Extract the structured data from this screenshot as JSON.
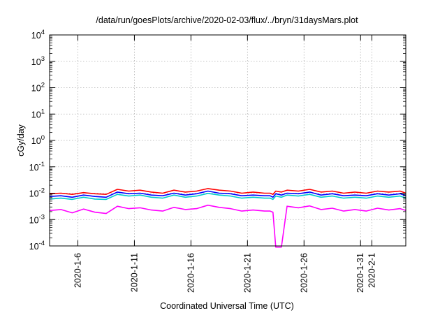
{
  "chart_data": {
    "type": "line",
    "title": "/data/run/goesPlots/archive/2020-02-03/flux/../bryn/31daysMars.plot",
    "xlabel": "Coordinated Universal Time (UTC)",
    "ylabel": "cGy/day",
    "yscale": "log",
    "ylim": [
      0.0001,
      10000
    ],
    "xlim": [
      "2020-01-03T12:00",
      "2020-02-04T00:00"
    ],
    "grid": true,
    "legend": "none",
    "y_ticks": [
      {
        "base": "10",
        "exp": "-4",
        "value": 0.0001
      },
      {
        "base": "10",
        "exp": "-3",
        "value": 0.001
      },
      {
        "base": "10",
        "exp": "-2",
        "value": 0.01
      },
      {
        "base": "10",
        "exp": "-1",
        "value": 0.1
      },
      {
        "base": "10",
        "exp": "0",
        "value": 1
      },
      {
        "base": "10",
        "exp": "1",
        "value": 10
      },
      {
        "base": "10",
        "exp": "2",
        "value": 100
      },
      {
        "base": "10",
        "exp": "3",
        "value": 1000
      },
      {
        "base": "10",
        "exp": "4",
        "value": 10000
      }
    ],
    "x_ticks": [
      {
        "label": "2020-1-6",
        "date": "2020-01-06"
      },
      {
        "label": "2020-1-11",
        "date": "2020-01-11"
      },
      {
        "label": "2020-1-16",
        "date": "2020-01-16"
      },
      {
        "label": "2020-1-21",
        "date": "2020-01-21"
      },
      {
        "label": "2020-1-26",
        "date": "2020-01-26"
      },
      {
        "label": "2020-1-31",
        "date": "2020-01-31"
      },
      {
        "label": "2020-2-1",
        "date": "2020-02-01"
      }
    ],
    "x": [
      "2020-01-03T12:00",
      "2020-01-04T12:00",
      "2020-01-05T12:00",
      "2020-01-06T12:00",
      "2020-01-07T12:00",
      "2020-01-08T12:00",
      "2020-01-09T12:00",
      "2020-01-10T12:00",
      "2020-01-11T12:00",
      "2020-01-12T12:00",
      "2020-01-13T12:00",
      "2020-01-14T12:00",
      "2020-01-15T12:00",
      "2020-01-16T12:00",
      "2020-01-17T12:00",
      "2020-01-18T12:00",
      "2020-01-19T12:00",
      "2020-01-20T12:00",
      "2020-01-21T12:00",
      "2020-01-22T12:00",
      "2020-01-23T00:00",
      "2020-01-23T06:00",
      "2020-01-23T12:00",
      "2020-01-24T00:00",
      "2020-01-24T12:00",
      "2020-01-25T12:00",
      "2020-01-26T12:00",
      "2020-01-27T12:00",
      "2020-01-28T12:00",
      "2020-01-29T12:00",
      "2020-01-30T12:00",
      "2020-01-31T12:00",
      "2020-02-01T12:00",
      "2020-02-02T12:00",
      "2020-02-03T12:00",
      "2020-02-04T00:00"
    ],
    "series": [
      {
        "color": "#ff0000",
        "values": [
          0.0095,
          0.01,
          0.009,
          0.0105,
          0.0095,
          0.009,
          0.014,
          0.012,
          0.013,
          0.011,
          0.01,
          0.013,
          0.011,
          0.012,
          0.015,
          0.013,
          0.012,
          0.01,
          0.011,
          0.01,
          0.01,
          0.009,
          0.012,
          0.011,
          0.013,
          0.012,
          0.014,
          0.011,
          0.012,
          0.01,
          0.011,
          0.01,
          0.012,
          0.011,
          0.012,
          0.01
        ]
      },
      {
        "color": "#0000ff",
        "values": [
          0.0075,
          0.008,
          0.007,
          0.0085,
          0.0075,
          0.007,
          0.011,
          0.0095,
          0.01,
          0.0085,
          0.008,
          0.01,
          0.0085,
          0.0095,
          0.012,
          0.01,
          0.0095,
          0.008,
          0.0085,
          0.008,
          0.008,
          0.007,
          0.0095,
          0.0085,
          0.01,
          0.0095,
          0.011,
          0.0085,
          0.0095,
          0.008,
          0.0085,
          0.008,
          0.0095,
          0.0085,
          0.0095,
          0.008
        ]
      },
      {
        "color": "#00cccc",
        "values": [
          0.006,
          0.0065,
          0.0058,
          0.007,
          0.006,
          0.0058,
          0.009,
          0.0078,
          0.0085,
          0.007,
          0.0065,
          0.0085,
          0.007,
          0.0078,
          0.0098,
          0.0085,
          0.0078,
          0.0065,
          0.007,
          0.0065,
          0.0065,
          0.0058,
          0.0078,
          0.007,
          0.0085,
          0.0078,
          0.009,
          0.007,
          0.0078,
          0.0065,
          0.007,
          0.0065,
          0.0078,
          0.007,
          0.0078,
          0.0065
        ]
      },
      {
        "color": "#ff00ff",
        "values": [
          0.0022,
          0.0024,
          0.0018,
          0.0025,
          0.0019,
          0.0017,
          0.0032,
          0.0026,
          0.0028,
          0.0023,
          0.0021,
          0.0029,
          0.0024,
          0.0026,
          0.0035,
          0.0029,
          0.0026,
          0.0021,
          0.0023,
          0.0021,
          0.0021,
          0.0019,
          9e-05,
          9e-05,
          0.0032,
          0.0028,
          0.0033,
          0.0024,
          0.0027,
          0.0021,
          0.0024,
          0.0021,
          0.0027,
          0.0023,
          0.0026,
          0.0022
        ]
      }
    ]
  }
}
